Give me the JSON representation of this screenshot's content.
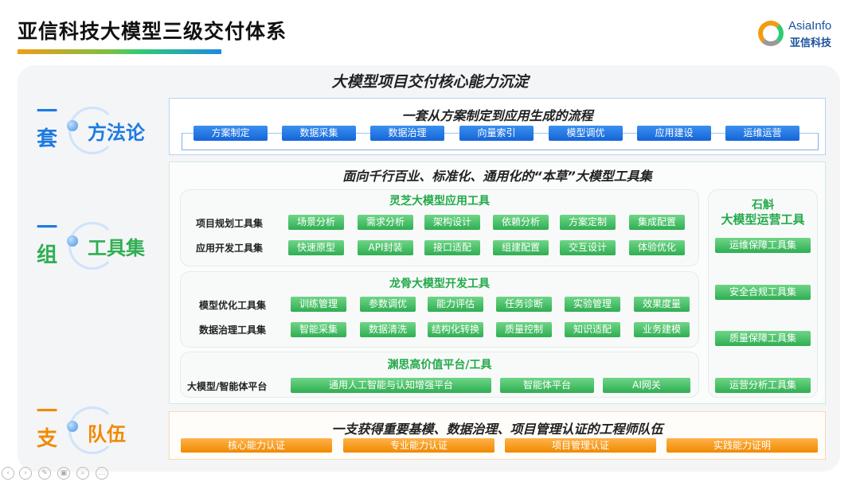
{
  "header": {
    "title": "亚信科技大模型三级交付体系",
    "logo_en": "AsiaInfo",
    "logo_cn": "亚信科技"
  },
  "heading": "大模型项目交付核心能力沉淀",
  "colors": {
    "blue": "#1e7be0",
    "green": "#2fae52",
    "orange": "#f08a00"
  },
  "methodology": {
    "side_a": "一",
    "side_b": "套",
    "label": "方法论",
    "title": "一套从方案制定到应用生成的流程",
    "steps": [
      "方案制定",
      "数据采集",
      "数据治理",
      "向量索引",
      "模型调优",
      "应用建设",
      "运维运营"
    ]
  },
  "tools": {
    "side_a": "一",
    "side_b": "组",
    "label": "工具集",
    "title": "面向千行百业、标准化、通用化的“本草”大模型工具集",
    "lingzhi": {
      "title": "灵芝大模型应用工具",
      "rows": [
        {
          "label": "项目规划工具集",
          "items": [
            "场景分析",
            "需求分析",
            "架构设计",
            "依赖分析",
            "方案定制",
            "集成配置"
          ]
        },
        {
          "label": "应用开发工具集",
          "items": [
            "快速原型",
            "API封装",
            "接口适配",
            "组建配置",
            "交互设计",
            "体验优化"
          ]
        }
      ]
    },
    "longgu": {
      "title": "龙骨大模型开发工具",
      "rows": [
        {
          "label": "模型优化工具集",
          "items": [
            "训练管理",
            "参数调优",
            "能力评估",
            "任务诊断",
            "实验管理",
            "效果度量"
          ]
        },
        {
          "label": "数据治理工具集",
          "items": [
            "智能采集",
            "数据清洗",
            "结构化转换",
            "质量控制",
            "知识适配",
            "业务建模"
          ]
        }
      ]
    },
    "yuansi": {
      "title": "渊思高价值平台/工具",
      "label": "大模型/智能体平台",
      "items": [
        "通用人工智能与认知增强平台",
        "智能体平台",
        "AI网关"
      ]
    },
    "shihu": {
      "title_a": "石斛",
      "title_b": "大模型运营工具",
      "items": [
        "运维保障工具集",
        "安全合规工具集",
        "质量保障工具集",
        "运营分析工具集"
      ]
    }
  },
  "team": {
    "side_a": "一",
    "side_b": "支",
    "label": "队伍",
    "title": "一支获得重要基模、数据治理、项目管理认证的工程师队伍",
    "items": [
      "核心能力认证",
      "专业能力认证",
      "项目管理认证",
      "实践能力证明"
    ]
  },
  "controls": [
    "prev-icon",
    "next-icon",
    "pen-icon",
    "slides-icon",
    "zoom-icon",
    "more-icon"
  ]
}
